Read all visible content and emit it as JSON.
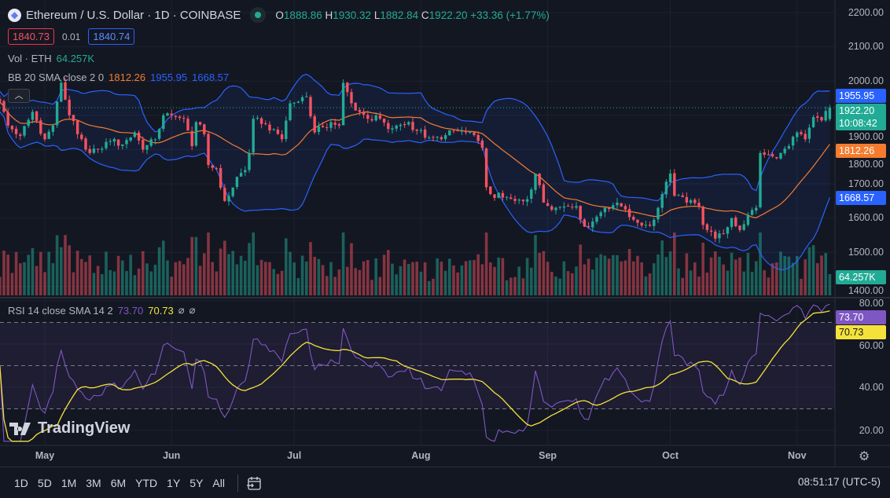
{
  "header": {
    "symbol_title": "Ethereum / U.S. Dollar · 1D · COINBASE",
    "o_label": "O",
    "o": "1888.86",
    "h_label": "H",
    "h": "1930.32",
    "l_label": "L",
    "l": "1882.84",
    "c_label": "C",
    "c": "1922.20",
    "change": "+33.36 (+1.77%)"
  },
  "trade": {
    "sell": "1840.73",
    "spread": "0.01",
    "buy": "1840.74"
  },
  "volume_legend": {
    "label": "Vol · ETH",
    "value": "64.257K"
  },
  "bb_legend": {
    "label": "BB 20 SMA close 2 0",
    "basis": "1812.26",
    "upper": "1955.95",
    "lower": "1668.57"
  },
  "rsi_legend": {
    "label": "RSI 14 close SMA 14 2",
    "rsi": "73.70",
    "sma": "70.73",
    "extra1": "⌀",
    "extra2": "⌀"
  },
  "price_axis": [
    "2200.00",
    "2100.00",
    "2000.00",
    "1900.00",
    "1800.00",
    "1700.00",
    "1600.00",
    "1500.00",
    "1400.00"
  ],
  "rsi_axis": [
    "80.00",
    "60.00",
    "40.00",
    "20.00"
  ],
  "badges": {
    "bb_upper": "1955.95",
    "last_price": "1922.20",
    "countdown": "10:08:42",
    "bb_basis": "1812.26",
    "bb_lower": "1668.57",
    "volume": "64.257K",
    "rsi": "73.70",
    "rsi_sma": "70.73"
  },
  "time_axis": [
    {
      "label": "May",
      "date": "05-01"
    },
    {
      "label": "Jun",
      "date": "06-01"
    },
    {
      "label": "Jul",
      "date": "07-01"
    },
    {
      "label": "Aug",
      "date": "08-01"
    },
    {
      "label": "Sep",
      "date": "09-01"
    },
    {
      "label": "Oct",
      "date": "10-01"
    },
    {
      "label": "Nov",
      "date": "11-01"
    }
  ],
  "toolbar": {
    "timeframes": [
      "1D",
      "5D",
      "1M",
      "3M",
      "6M",
      "YTD",
      "1Y",
      "5Y",
      "All"
    ],
    "clock": "08:51:17 (UTC-5)"
  },
  "brand": "TradingView",
  "colors": {
    "up": "#22ab94",
    "down": "#f7525f",
    "bb_band": "#2962ff",
    "bb_basis": "#f57c2e",
    "rsi": "#7e57c2",
    "rsi_sma": "#f5e13b"
  },
  "chart_data": {
    "type": "candlestick",
    "title": "Ethereum / U.S. Dollar · 1D · COINBASE",
    "start": "04-20",
    "end": "11-09",
    "ylim": [
      1400,
      2200
    ],
    "rsi_ylim": [
      15,
      82
    ],
    "rsi_levels": [
      70,
      50,
      30
    ],
    "last_ohlc": {
      "open": 1888.86,
      "high": 1930.32,
      "low": 1882.84,
      "close": 1922.2
    },
    "close_keypoints": [
      [
        "04-20",
        1940
      ],
      [
        "04-22",
        1870
      ],
      [
        "04-25",
        1840
      ],
      [
        "04-28",
        1910
      ],
      [
        "05-01",
        1830
      ],
      [
        "05-03",
        1870
      ],
      [
        "05-05",
        1995
      ],
      [
        "05-07",
        1900
      ],
      [
        "05-09",
        1845
      ],
      [
        "05-11",
        1800
      ],
      [
        "05-14",
        1800
      ],
      [
        "05-17",
        1825
      ],
      [
        "05-20",
        1815
      ],
      [
        "05-23",
        1850
      ],
      [
        "05-25",
        1800
      ],
      [
        "05-28",
        1830
      ],
      [
        "05-30",
        1900
      ],
      [
        "06-02",
        1895
      ],
      [
        "06-04",
        1890
      ],
      [
        "06-06",
        1810
      ],
      [
        "06-07",
        1880
      ],
      [
        "06-09",
        1845
      ],
      [
        "06-10",
        1755
      ],
      [
        "06-12",
        1745
      ],
      [
        "06-14",
        1650
      ],
      [
        "06-15",
        1665
      ],
      [
        "06-17",
        1720
      ],
      [
        "06-19",
        1740
      ],
      [
        "06-20",
        1790
      ],
      [
        "06-21",
        1890
      ],
      [
        "06-23",
        1875
      ],
      [
        "06-26",
        1860
      ],
      [
        "06-28",
        1830
      ],
      [
        "06-30",
        1935
      ],
      [
        "07-02",
        1940
      ],
      [
        "07-04",
        1955
      ],
      [
        "07-06",
        1850
      ],
      [
        "07-08",
        1865
      ],
      [
        "07-10",
        1880
      ],
      [
        "07-12",
        1870
      ],
      [
        "07-13",
        1995
      ],
      [
        "07-15",
        1935
      ],
      [
        "07-17",
        1910
      ],
      [
        "07-19",
        1890
      ],
      [
        "07-22",
        1890
      ],
      [
        "07-24",
        1860
      ],
      [
        "07-26",
        1870
      ],
      [
        "07-29",
        1880
      ],
      [
        "07-31",
        1855
      ],
      [
        "08-03",
        1835
      ],
      [
        "08-06",
        1830
      ],
      [
        "08-09",
        1855
      ],
      [
        "08-12",
        1850
      ],
      [
        "08-15",
        1825
      ],
      [
        "08-16",
        1805
      ],
      [
        "08-17",
        1690
      ],
      [
        "08-18",
        1670
      ],
      [
        "08-21",
        1660
      ],
      [
        "08-24",
        1650
      ],
      [
        "08-27",
        1655
      ],
      [
        "08-29",
        1730
      ],
      [
        "08-31",
        1645
      ],
      [
        "09-03",
        1630
      ],
      [
        "09-06",
        1635
      ],
      [
        "09-08",
        1635
      ],
      [
        "09-10",
        1575
      ],
      [
        "09-12",
        1590
      ],
      [
        "09-15",
        1630
      ],
      [
        "09-18",
        1645
      ],
      [
        "09-20",
        1625
      ],
      [
        "09-22",
        1595
      ],
      [
        "09-25",
        1580
      ],
      [
        "09-27",
        1595
      ],
      [
        "09-29",
        1670
      ],
      [
        "10-01",
        1730
      ],
      [
        "10-02",
        1665
      ],
      [
        "10-05",
        1645
      ],
      [
        "10-08",
        1635
      ],
      [
        "10-09",
        1580
      ],
      [
        "10-12",
        1540
      ],
      [
        "10-14",
        1555
      ],
      [
        "10-16",
        1600
      ],
      [
        "10-18",
        1565
      ],
      [
        "10-20",
        1610
      ],
      [
        "10-22",
        1630
      ],
      [
        "10-23",
        1790
      ],
      [
        "10-24",
        1785
      ],
      [
        "10-26",
        1780
      ],
      [
        "10-28",
        1790
      ],
      [
        "10-30",
        1810
      ],
      [
        "11-01",
        1850
      ],
      [
        "11-03",
        1830
      ],
      [
        "11-05",
        1895
      ],
      [
        "11-07",
        1885
      ],
      [
        "11-09",
        1922.2
      ]
    ],
    "last_volume_k": 64.257
  }
}
